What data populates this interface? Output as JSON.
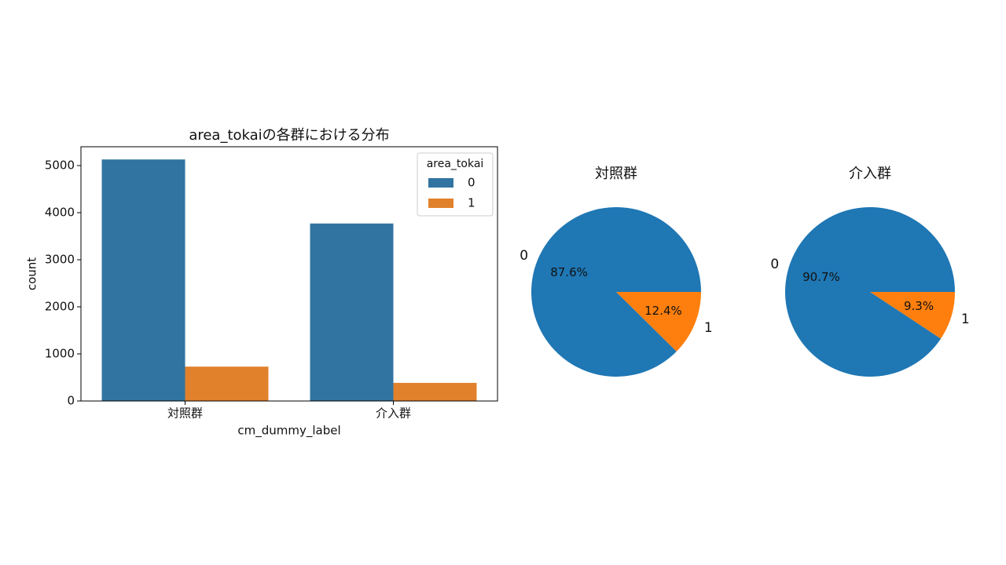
{
  "chart_data": [
    {
      "type": "bar",
      "title": "area_tokaiの各群における分布",
      "x_label": "cm_dummy_label",
      "y_label": "count",
      "categories": [
        "対照群",
        "介入群"
      ],
      "series": [
        {
          "name": "0",
          "color": "#3274a1",
          "values": [
            5130,
            3770
          ]
        },
        {
          "name": "1",
          "color": "#e1812c",
          "values": [
            730,
            385
          ]
        }
      ],
      "ylim": [
        0,
        5400
      ],
      "yticks": [
        0,
        1000,
        2000,
        3000,
        4000,
        5000
      ],
      "legend_title": "area_tokai",
      "legend": "upper right"
    },
    {
      "type": "pie",
      "title": "対照群",
      "categories": [
        "0",
        "1"
      ],
      "values": [
        87.6,
        12.4
      ],
      "value_labels": [
        "87.6%",
        "12.4%"
      ],
      "colors": [
        "#1f77b4",
        "#ff7f0e"
      ]
    },
    {
      "type": "pie",
      "title": "介入群",
      "categories": [
        "0",
        "1"
      ],
      "values": [
        90.7,
        9.3
      ],
      "value_labels": [
        "90.7%",
        "9.3%"
      ],
      "colors": [
        "#1f77b4",
        "#ff7f0e"
      ]
    }
  ]
}
